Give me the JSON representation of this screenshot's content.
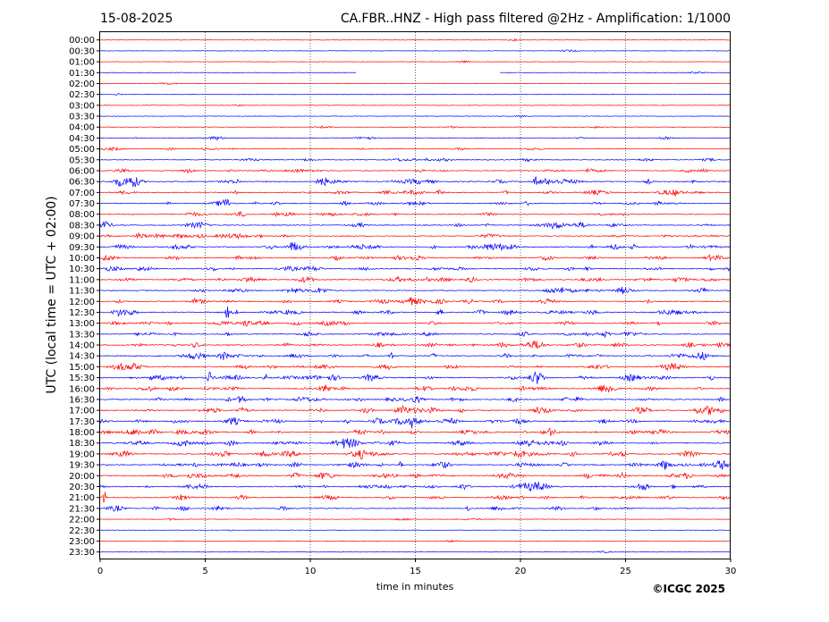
{
  "chart_data": {
    "type": "line",
    "date": "15-08-2025",
    "title": "CA.FBR..HNZ - High pass filtered @2Hz - Amplification: 1/1000",
    "xlabel": "time in minutes",
    "ylabel": "UTC (local time = UTC + 02:00)",
    "copyright": "©ICGC 2025",
    "xlim": [
      0,
      30
    ],
    "x_ticks": [
      "0",
      "5",
      "10",
      "15",
      "20",
      "25",
      "30"
    ],
    "x_tick_values": [
      0,
      5,
      10,
      15,
      20,
      25,
      30
    ],
    "grid": "vertical dotted at x ticks",
    "trace_colors": [
      "#ff0000",
      "#0000ff"
    ],
    "axis_color": "#000000",
    "rows": [
      "00:00",
      "00:30",
      "01:00",
      "01:30",
      "02:00",
      "02:30",
      "03:00",
      "03:30",
      "04:00",
      "04:30",
      "05:00",
      "05:30",
      "06:00",
      "06:30",
      "07:00",
      "07:30",
      "08:00",
      "08:30",
      "09:00",
      "09:30",
      "10:00",
      "10:30",
      "11:00",
      "11:30",
      "12:00",
      "12:30",
      "13:00",
      "13:30",
      "14:00",
      "14:30",
      "15:00",
      "15:30",
      "16:00",
      "16:30",
      "17:00",
      "17:30",
      "18:00",
      "18:30",
      "19:00",
      "19:30",
      "20:00",
      "20:30",
      "21:00",
      "21:30",
      "22:00",
      "22:30",
      "23:00",
      "23:30"
    ],
    "activity": [
      0.05,
      0.05,
      0.05,
      0.05,
      0.05,
      0.05,
      0.05,
      0.05,
      0.1,
      0.25,
      0.3,
      0.4,
      0.55,
      0.85,
      0.65,
      0.6,
      0.55,
      0.6,
      0.6,
      0.85,
      0.7,
      0.7,
      0.75,
      0.7,
      0.7,
      0.75,
      0.7,
      0.7,
      0.8,
      0.8,
      0.8,
      0.9,
      0.8,
      0.8,
      0.95,
      0.95,
      0.9,
      0.9,
      0.9,
      0.9,
      0.85,
      0.8,
      0.6,
      0.55,
      0.1,
      0.05,
      0.05,
      0.05
    ],
    "events": [
      {
        "row": "01:30",
        "minute": 15.35,
        "amplitude": 30
      },
      {
        "row": "06:30",
        "minute": 20.7,
        "amplitude": 6
      },
      {
        "row": "12:30",
        "minute": 6.05,
        "amplitude": 8
      },
      {
        "row": "14:30",
        "minute": 13.85,
        "amplitude": 5
      },
      {
        "row": "15:30",
        "minute": 5.2,
        "amplitude": 7
      },
      {
        "row": "15:30",
        "minute": 7.85,
        "amplitude": 5
      },
      {
        "row": "17:30",
        "minute": 14.85,
        "amplitude": 5
      },
      {
        "row": "19:30",
        "minute": 14.3,
        "amplitude": 4
      },
      {
        "row": "21:00",
        "minute": 0.2,
        "amplitude": 8
      },
      {
        "row": "21:30",
        "minute": 17.5,
        "amplitude": 4
      }
    ],
    "gaps": [
      {
        "row": "01:30",
        "from_minute": 12.2,
        "to_minute": 19.0
      }
    ]
  }
}
